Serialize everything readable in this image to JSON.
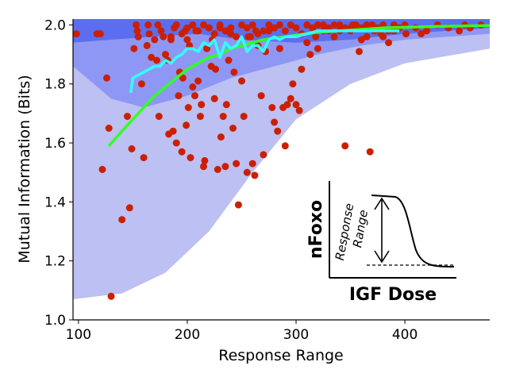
{
  "chart_data": {
    "type": "scatter",
    "xlabel": "Response Range",
    "ylabel": "Mutual Information (Bits)",
    "xlim": [
      95,
      478
    ],
    "ylim": [
      1.0,
      2.02
    ],
    "xticks": [
      100,
      200,
      300,
      400
    ],
    "xtick_labels": [
      "100",
      "200",
      "300",
      "400"
    ],
    "yticks": [
      1.0,
      1.2,
      1.4,
      1.6,
      1.8,
      2.0
    ],
    "ytick_labels": [
      "1.0",
      "1.2",
      "1.4",
      "1.6",
      "1.8",
      "2.0"
    ],
    "grid": false,
    "colors": {
      "band_outer": "#bcc0f2",
      "band_middle": "#8e98f4",
      "band_inner": "#5c6ef0",
      "points": "#cc1f00",
      "binned_line": "#33ffff",
      "fit_line": "#33ff22"
    },
    "bands": [
      {
        "x": [
          95,
          140,
          180,
          220,
          260,
          300,
          350,
          400,
          478
        ],
        "lower": [
          1.07,
          1.09,
          1.16,
          1.3,
          1.5,
          1.68,
          1.8,
          1.87,
          1.92
        ],
        "upper": [
          2.02,
          2.02,
          2.02,
          2.02,
          2.02,
          2.02,
          2.02,
          2.02,
          2.02
        ]
      },
      {
        "x": [
          95,
          130,
          160,
          200,
          240,
          280,
          320,
          360,
          400,
          478
        ],
        "lower": [
          1.86,
          1.75,
          1.72,
          1.76,
          1.82,
          1.86,
          1.9,
          1.93,
          1.95,
          1.97
        ],
        "upper": [
          2.02,
          2.02,
          2.02,
          2.02,
          2.02,
          2.02,
          2.02,
          2.02,
          2.02,
          2.02
        ]
      },
      {
        "x": [
          95,
          130,
          170,
          210,
          250,
          300,
          350,
          400,
          478
        ],
        "lower": [
          1.94,
          1.95,
          1.96,
          1.97,
          1.95,
          1.94,
          1.95,
          1.97,
          1.99
        ],
        "upper": [
          2.02,
          2.02,
          2.02,
          2.02,
          2.02,
          2.02,
          2.02,
          2.02,
          2.02
        ]
      }
    ],
    "scatter": {
      "x": [
        98,
        117,
        120,
        122,
        126,
        128,
        130,
        140,
        145,
        147,
        149,
        151,
        153,
        154,
        155,
        158,
        160,
        163,
        164,
        165,
        167,
        170,
        172,
        173,
        174,
        176,
        178,
        180,
        182,
        183,
        185,
        187,
        188,
        190,
        192,
        193,
        195,
        196,
        198,
        199,
        200,
        201,
        202,
        203,
        205,
        207,
        208,
        210,
        212,
        213,
        215,
        216,
        218,
        220,
        222,
        223,
        225,
        226,
        228,
        230,
        231,
        233,
        235,
        236,
        238,
        240,
        242,
        243,
        245,
        247,
        250,
        252,
        255,
        256,
        258,
        260,
        262,
        263,
        265,
        268,
        270,
        272,
        275,
        278,
        280,
        283,
        285,
        288,
        290,
        292,
        295,
        297,
        300,
        303,
        305,
        310,
        313,
        318,
        320,
        325,
        330,
        335,
        340,
        345,
        350,
        352,
        358,
        360,
        365,
        368,
        372,
        378,
        380,
        385,
        390,
        395,
        401,
        410,
        415,
        420,
        430,
        440,
        450,
        455,
        460,
        470,
        185,
        190,
        195,
        200,
        205,
        210,
        215,
        220,
        225,
        230,
        235,
        240,
        245,
        250,
        255,
        260,
        265,
        270,
        275,
        280,
        285,
        290,
        295,
        300,
        305,
        310,
        315,
        320,
        325,
        330,
        335,
        340,
        345,
        350,
        355,
        360,
        365,
        370,
        375,
        380,
        385,
        390,
        395,
        400
      ],
      "y": [
        1.97,
        1.97,
        1.97,
        1.51,
        1.82,
        1.65,
        1.08,
        1.34,
        1.69,
        1.38,
        1.58,
        1.92,
        2.0,
        1.98,
        1.96,
        1.8,
        1.55,
        1.93,
        2.0,
        1.97,
        1.89,
        1.95,
        1.88,
        2.0,
        1.69,
        1.98,
        1.96,
        1.9,
        1.88,
        1.63,
        1.95,
        1.64,
        1.99,
        1.6,
        1.76,
        1.84,
        1.57,
        1.82,
        1.98,
        1.66,
        1.95,
        1.72,
        1.93,
        1.55,
        1.79,
        1.76,
        1.98,
        1.81,
        1.69,
        1.73,
        1.52,
        1.54,
        1.92,
        1.99,
        1.86,
        1.95,
        1.75,
        1.85,
        1.51,
        1.99,
        1.62,
        1.69,
        1.52,
        1.73,
        1.88,
        1.97,
        1.65,
        1.84,
        1.53,
        1.39,
        1.81,
        1.69,
        1.5,
        1.96,
        1.96,
        1.53,
        1.49,
        1.98,
        1.93,
        1.76,
        1.56,
        1.91,
        1.98,
        1.72,
        1.67,
        1.64,
        1.92,
        1.72,
        1.59,
        1.73,
        1.75,
        1.8,
        1.73,
        1.71,
        1.85,
        1.94,
        1.9,
        1.96,
        1.92,
        2.0,
        1.98,
        1.96,
        1.98,
        1.59,
        1.99,
        2.0,
        1.91,
        1.95,
        1.96,
        1.57,
        1.98,
        1.97,
        1.96,
        1.94,
        1.98,
        1.99,
        1.97,
        1.99,
        1.97,
        1.98,
        2.0,
        1.99,
        1.98,
        2.0,
        1.99,
        2.0,
        1.96,
        2.0,
        1.97,
        1.99,
        2.0,
        1.98,
        2.0,
        1.99,
        1.97,
        2.0,
        1.98,
        1.99,
        1.96,
        2.0,
        1.99,
        2.0,
        1.97,
        1.98,
        2.0,
        1.99,
        2.0,
        1.98,
        2.0,
        1.99,
        1.97,
        2.0,
        1.99,
        2.0,
        1.98,
        1.99,
        2.0,
        2.0,
        1.99,
        1.98,
        2.0,
        1.99,
        2.0,
        2.0,
        1.99,
        2.0,
        1.98,
        2.0,
        1.99,
        2.0
      ]
    },
    "binned_line": {
      "x": [
        148,
        150,
        155,
        160,
        165,
        170,
        175,
        180,
        185,
        190,
        195,
        200,
        205,
        210,
        215,
        220,
        225,
        230,
        235,
        240,
        245,
        250,
        255,
        260,
        265,
        270,
        275,
        280,
        285,
        290,
        300,
        310,
        320,
        330,
        340,
        350,
        360,
        370,
        380,
        395
      ],
      "y": [
        1.77,
        1.82,
        1.83,
        1.84,
        1.85,
        1.86,
        1.86,
        1.88,
        1.87,
        1.89,
        1.9,
        1.92,
        1.92,
        1.91,
        1.94,
        1.93,
        1.95,
        1.89,
        1.94,
        1.92,
        1.93,
        1.96,
        1.91,
        1.93,
        1.93,
        1.91,
        1.95,
        1.96,
        1.95,
        1.96,
        1.96,
        1.97,
        1.98,
        1.98,
        1.98,
        1.98,
        1.98,
        1.98,
        1.98,
        1.98
      ]
    },
    "fit_line": {
      "x": [
        128,
        140,
        150,
        160,
        170,
        180,
        190,
        200,
        210,
        220,
        230,
        240,
        250,
        260,
        270,
        280,
        290,
        300,
        320,
        340,
        360,
        380,
        400,
        430,
        460,
        478
      ],
      "y": [
        1.59,
        1.64,
        1.68,
        1.72,
        1.76,
        1.79,
        1.82,
        1.85,
        1.87,
        1.89,
        1.9,
        1.92,
        1.93,
        1.94,
        1.95,
        1.955,
        1.96,
        1.965,
        1.975,
        1.98,
        1.985,
        1.99,
        1.992,
        1.995,
        1.997,
        1.998
      ]
    },
    "inset": {
      "ylabel": "nFoxo",
      "xlabel": "IGF Dose",
      "annotation_line1": "Response",
      "annotation_line2": "Range"
    }
  }
}
